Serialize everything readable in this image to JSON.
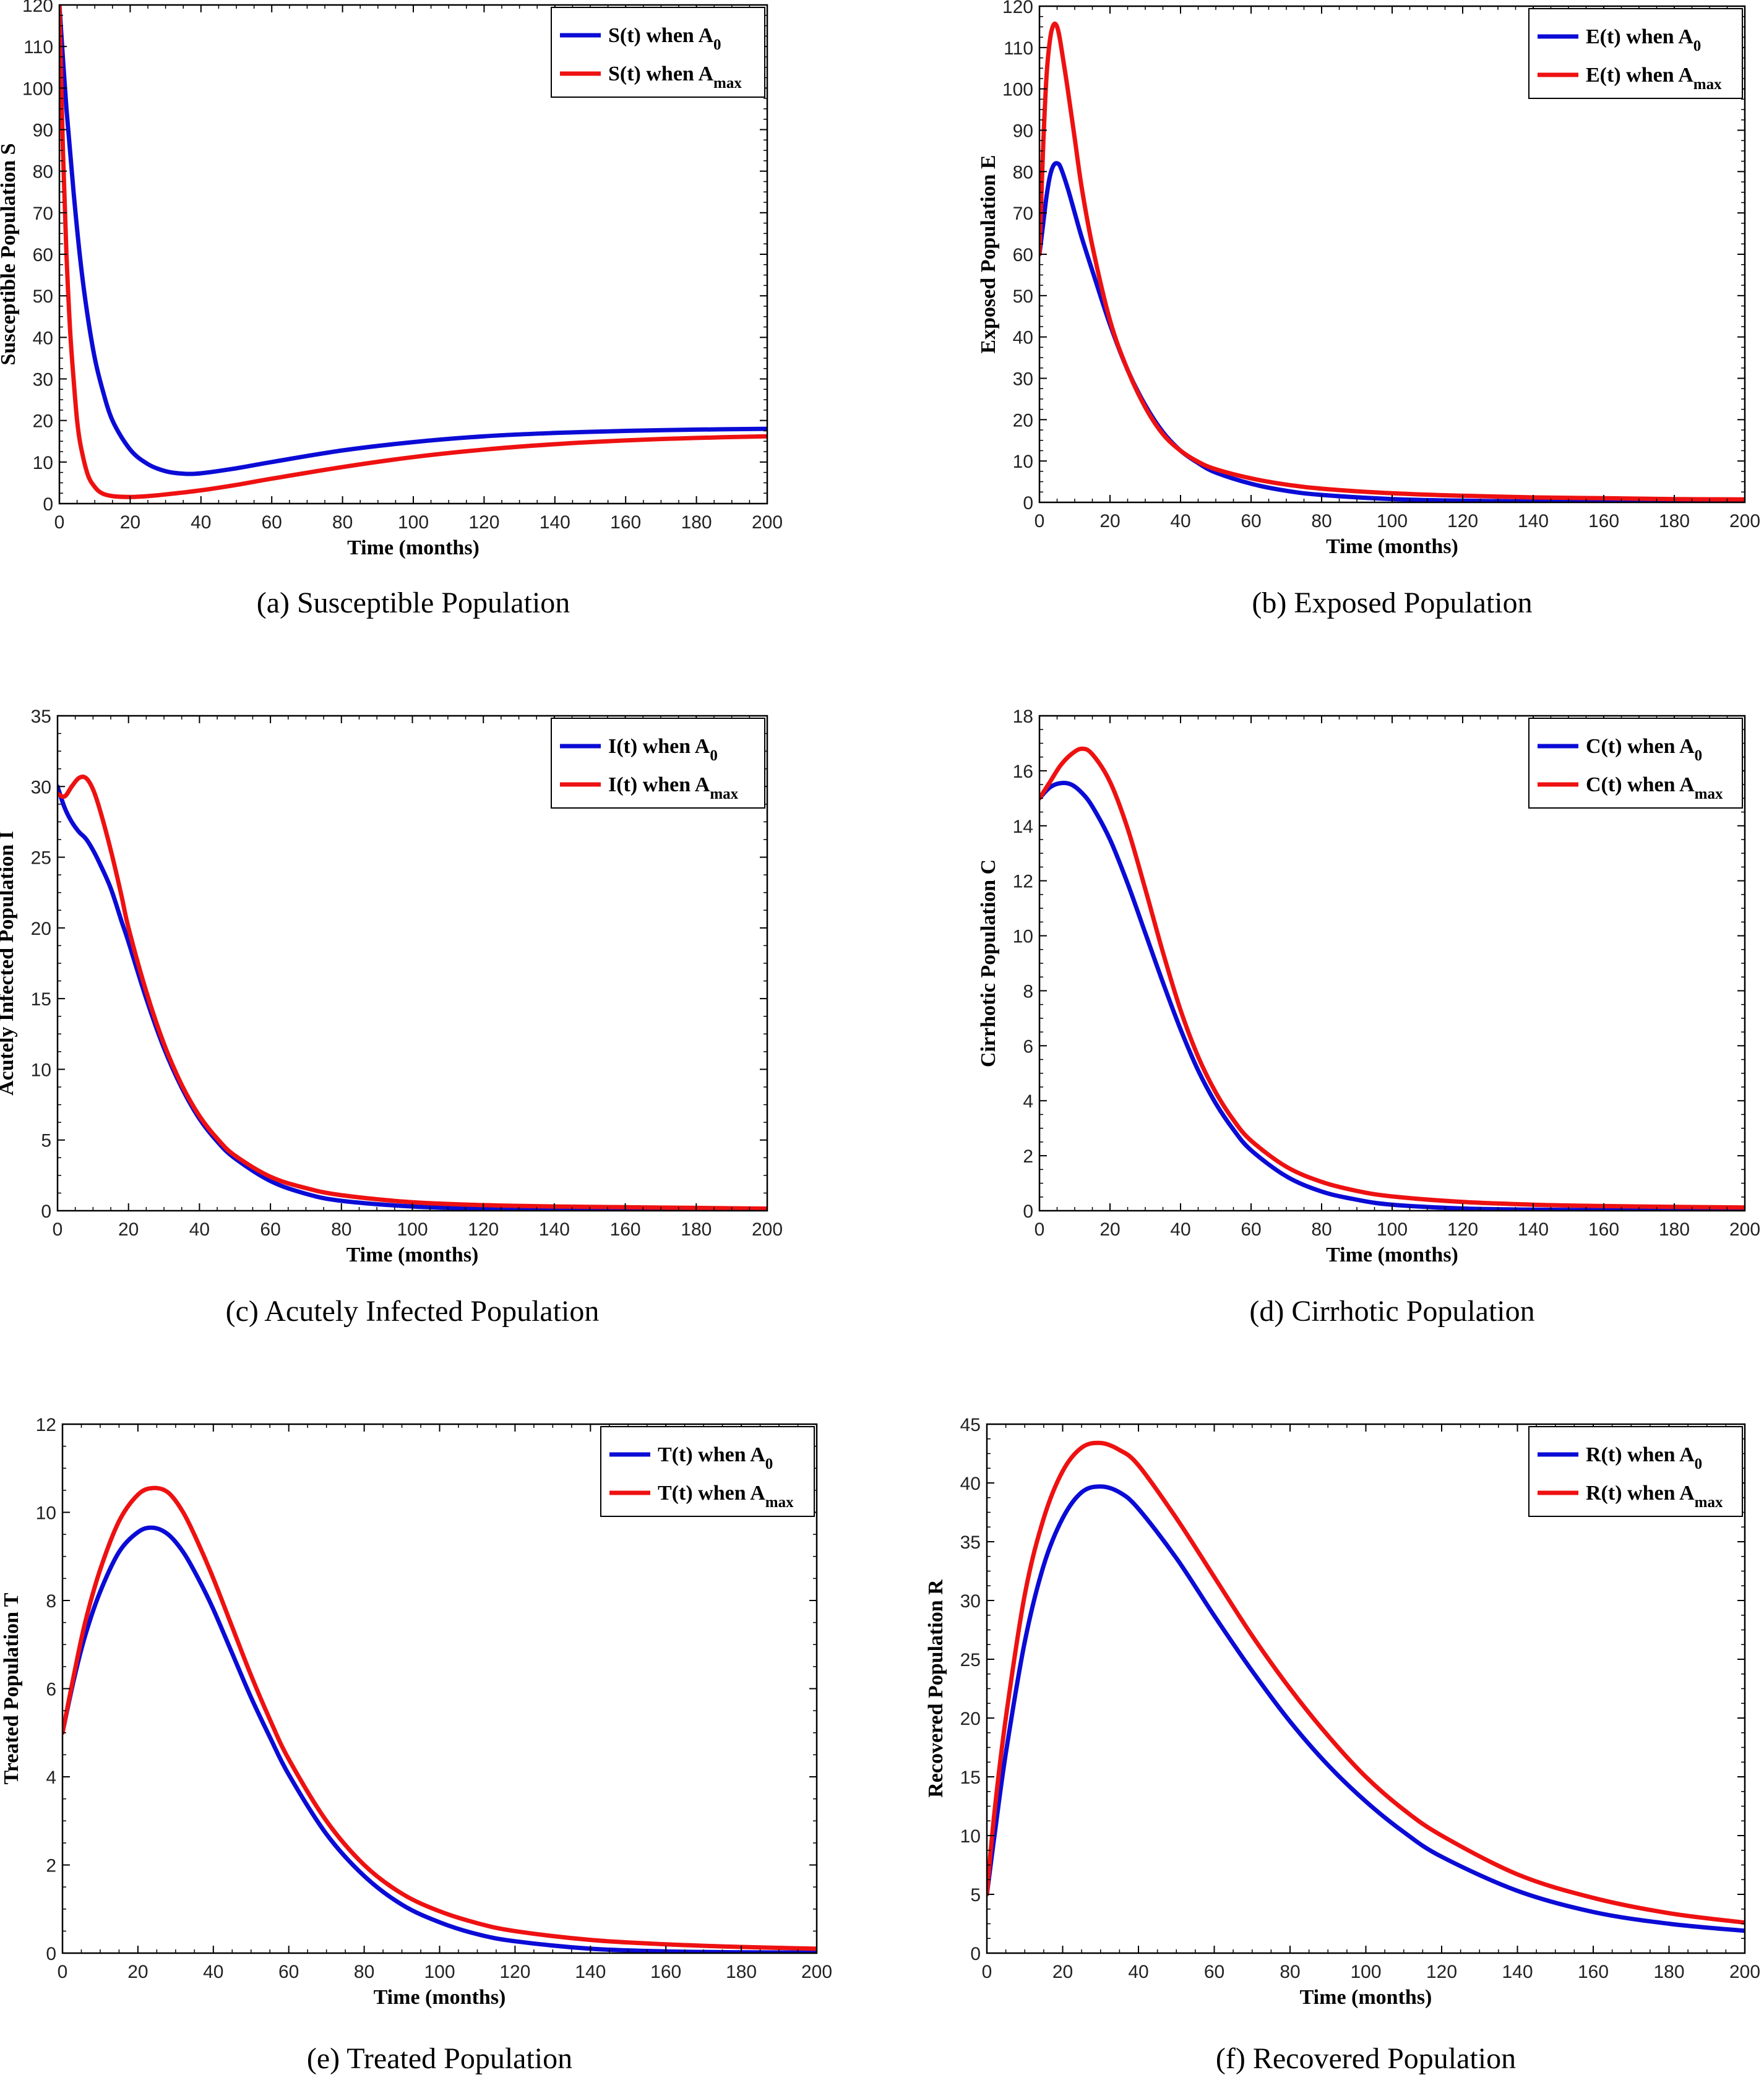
{
  "colors": {
    "a0": "#0b0bd6",
    "amax": "#ee1111",
    "axis": "#000000"
  },
  "chart_data": [
    {
      "type": "line",
      "caption": "(a) Susceptible Population",
      "xlabel": "Time (months)",
      "ylabel": "Susceptible Population S",
      "xlim": [
        0,
        200
      ],
      "ylim": [
        0,
        120
      ],
      "xticks": [
        0,
        20,
        40,
        60,
        80,
        100,
        120,
        140,
        160,
        180,
        200
      ],
      "yticks": [
        0,
        10,
        20,
        30,
        40,
        50,
        60,
        70,
        80,
        90,
        100,
        110,
        120
      ],
      "grid": false,
      "legend_position": "top-right",
      "series": [
        {
          "name": "S(t) when A",
          "subscript": "0",
          "color": "#0b0bd6",
          "x": [
            0,
            2,
            4,
            6,
            8,
            10,
            12,
            15,
            20,
            25,
            30,
            35,
            40,
            50,
            60,
            80,
            100,
            120,
            140,
            160,
            180,
            200
          ],
          "y": [
            120,
            95,
            75,
            58,
            45,
            35,
            28,
            20,
            13,
            9.5,
            7.8,
            7.2,
            7.3,
            8.5,
            10,
            12.8,
            14.8,
            16.2,
            17,
            17.5,
            17.8,
            18
          ]
        },
        {
          "name": "S(t) when A",
          "subscript": "max",
          "color": "#ee1111",
          "x": [
            0,
            1,
            2,
            3,
            4,
            5,
            6,
            8,
            10,
            12,
            15,
            20,
            25,
            30,
            40,
            50,
            60,
            80,
            100,
            120,
            140,
            160,
            180,
            200
          ],
          "y": [
            120,
            85,
            60,
            42,
            30,
            20,
            14,
            7,
            4,
            2.5,
            1.8,
            1.6,
            1.8,
            2.2,
            3.2,
            4.5,
            6,
            8.8,
            11.2,
            13,
            14.3,
            15.2,
            15.8,
            16.2
          ]
        }
      ]
    },
    {
      "type": "line",
      "caption": "(b) Exposed Population",
      "xlabel": "Time (months)",
      "ylabel": "Exposed Population E",
      "xlim": [
        0,
        200
      ],
      "ylim": [
        0,
        120
      ],
      "xticks": [
        0,
        20,
        40,
        60,
        80,
        100,
        120,
        140,
        160,
        180,
        200
      ],
      "yticks": [
        0,
        10,
        20,
        30,
        40,
        50,
        60,
        70,
        80,
        90,
        100,
        110,
        120
      ],
      "grid": false,
      "legend_position": "top-right",
      "series": [
        {
          "name": "E(t) when A",
          "subscript": "0",
          "color": "#0b0bd6",
          "x": [
            0,
            1,
            2,
            3,
            4,
            5,
            6,
            8,
            10,
            12,
            15,
            20,
            25,
            30,
            35,
            40,
            45,
            50,
            60,
            70,
            80,
            100,
            120,
            140,
            160,
            180,
            200
          ],
          "y": [
            60,
            67,
            74,
            79,
            81.5,
            82,
            81,
            76,
            70,
            64,
            56,
            43,
            32,
            23.5,
            17,
            12.5,
            9.5,
            7.2,
            4.5,
            2.8,
            1.8,
            0.8,
            0.4,
            0.2,
            0.1,
            0.1,
            0.1
          ]
        },
        {
          "name": "E(t) when A",
          "subscript": "max",
          "color": "#ee1111",
          "x": [
            0,
            1,
            2,
            3,
            4,
            5,
            6,
            8,
            10,
            12,
            15,
            20,
            25,
            30,
            35,
            40,
            45,
            50,
            60,
            70,
            80,
            100,
            120,
            140,
            160,
            180,
            200
          ],
          "y": [
            60,
            85,
            103,
            112,
            115.5,
            115,
            111,
            100,
            88,
            76,
            62,
            44,
            32,
            23,
            16.5,
            12.5,
            9.8,
            8,
            5.8,
            4.3,
            3.3,
            2.2,
            1.6,
            1.2,
            1,
            0.8,
            0.7
          ]
        }
      ]
    },
    {
      "type": "line",
      "caption": "(c) Acutely Infected Population",
      "xlabel": "Time (months)",
      "ylabel": "Acutely Infected Population I",
      "xlim": [
        0,
        200
      ],
      "ylim": [
        0,
        35
      ],
      "xticks": [
        0,
        20,
        40,
        60,
        80,
        100,
        120,
        140,
        160,
        180,
        200
      ],
      "yticks": [
        0,
        5,
        10,
        15,
        20,
        25,
        30,
        35
      ],
      "grid": false,
      "legend_position": "top-right",
      "series": [
        {
          "name": "I(t) when A",
          "subscript": "0",
          "color": "#0b0bd6",
          "x": [
            0,
            2,
            4,
            6,
            8,
            10,
            12,
            15,
            18,
            20,
            25,
            30,
            35,
            40,
            45,
            50,
            60,
            70,
            80,
            100,
            120,
            140,
            160,
            180,
            200
          ],
          "y": [
            30,
            28.5,
            27.5,
            26.8,
            26.3,
            25.5,
            24.5,
            22.8,
            20.5,
            19,
            15,
            11.5,
            8.7,
            6.5,
            4.9,
            3.7,
            2.1,
            1.2,
            0.7,
            0.3,
            0.15,
            0.1,
            0.08,
            0.05,
            0.05
          ]
        },
        {
          "name": "I(t) when A",
          "subscript": "max",
          "color": "#ee1111",
          "x": [
            0,
            2,
            4,
            6,
            8,
            10,
            12,
            15,
            18,
            20,
            25,
            30,
            35,
            40,
            45,
            50,
            60,
            70,
            80,
            100,
            120,
            140,
            160,
            180,
            200
          ],
          "y": [
            29.5,
            29.3,
            30,
            30.6,
            30.6,
            29.8,
            28.3,
            25.5,
            22.3,
            20,
            15.5,
            11.8,
            8.9,
            6.7,
            5.1,
            3.9,
            2.4,
            1.6,
            1.1,
            0.6,
            0.4,
            0.3,
            0.25,
            0.2,
            0.15
          ]
        }
      ]
    },
    {
      "type": "line",
      "caption": "(d) Cirrhotic Population",
      "xlabel": "Time (months)",
      "ylabel": "Cirrhotic Population C",
      "xlim": [
        0,
        200
      ],
      "ylim": [
        0,
        18
      ],
      "xticks": [
        0,
        20,
        40,
        60,
        80,
        100,
        120,
        140,
        160,
        180,
        200
      ],
      "yticks": [
        0,
        2,
        4,
        6,
        8,
        10,
        12,
        14,
        16,
        18
      ],
      "grid": false,
      "legend_position": "top-right",
      "series": [
        {
          "name": "C(t) when A",
          "subscript": "0",
          "color": "#0b0bd6",
          "x": [
            0,
            3,
            6,
            9,
            12,
            15,
            20,
            25,
            30,
            35,
            40,
            45,
            50,
            55,
            60,
            70,
            80,
            90,
            100,
            120,
            140,
            160,
            180,
            200
          ],
          "y": [
            15,
            15.4,
            15.55,
            15.5,
            15.2,
            14.7,
            13.5,
            11.9,
            10.1,
            8.3,
            6.6,
            5.1,
            3.9,
            2.95,
            2.2,
            1.25,
            0.7,
            0.4,
            0.22,
            0.08,
            0.04,
            0.02,
            0.01,
            0.01
          ]
        },
        {
          "name": "C(t) when A",
          "subscript": "max",
          "color": "#ee1111",
          "x": [
            0,
            3,
            6,
            9,
            12,
            15,
            20,
            25,
            30,
            35,
            40,
            45,
            50,
            55,
            60,
            70,
            80,
            90,
            100,
            120,
            140,
            160,
            180,
            200
          ],
          "y": [
            15,
            15.6,
            16.2,
            16.6,
            16.8,
            16.6,
            15.6,
            13.9,
            11.7,
            9.4,
            7.3,
            5.6,
            4.3,
            3.3,
            2.55,
            1.6,
            1.05,
            0.72,
            0.52,
            0.32,
            0.22,
            0.17,
            0.14,
            0.12
          ]
        }
      ]
    },
    {
      "type": "line",
      "caption": "(e) Treated Population",
      "xlabel": "Time (months)",
      "ylabel": "Treated Population T",
      "xlim": [
        0,
        200
      ],
      "ylim": [
        0,
        12
      ],
      "xticks": [
        0,
        20,
        40,
        60,
        80,
        100,
        120,
        140,
        160,
        180,
        200
      ],
      "yticks": [
        0,
        2,
        4,
        6,
        8,
        10,
        12
      ],
      "grid": false,
      "legend_position": "top-right",
      "series": [
        {
          "name": "T(t) when A",
          "subscript": "0",
          "color": "#0b0bd6",
          "x": [
            0,
            3,
            6,
            10,
            15,
            20,
            24,
            28,
            32,
            36,
            40,
            45,
            50,
            55,
            60,
            70,
            80,
            90,
            100,
            110,
            120,
            140,
            160,
            180,
            200
          ],
          "y": [
            5,
            6.2,
            7.2,
            8.2,
            9.1,
            9.55,
            9.65,
            9.5,
            9.1,
            8.5,
            7.8,
            6.8,
            5.8,
            4.9,
            4.05,
            2.7,
            1.75,
            1.1,
            0.7,
            0.43,
            0.27,
            0.1,
            0.04,
            0.02,
            0.01
          ]
        },
        {
          "name": "T(t) when A",
          "subscript": "max",
          "color": "#ee1111",
          "x": [
            0,
            3,
            6,
            10,
            15,
            20,
            24,
            28,
            32,
            36,
            40,
            45,
            50,
            55,
            60,
            70,
            80,
            90,
            100,
            110,
            120,
            140,
            160,
            180,
            200
          ],
          "y": [
            5,
            6.3,
            7.5,
            8.7,
            9.8,
            10.4,
            10.55,
            10.45,
            10,
            9.3,
            8.5,
            7.4,
            6.3,
            5.3,
            4.4,
            3,
            2,
            1.35,
            0.95,
            0.68,
            0.5,
            0.3,
            0.2,
            0.14,
            0.1
          ]
        }
      ]
    },
    {
      "type": "line",
      "caption": "(f) Recovered Population",
      "xlabel": "Time (months)",
      "ylabel": "Recovered Population R",
      "xlim": [
        0,
        200
      ],
      "ylim": [
        0,
        45
      ],
      "xticks": [
        0,
        20,
        40,
        60,
        80,
        100,
        120,
        140,
        160,
        180,
        200
      ],
      "yticks": [
        0,
        5,
        10,
        15,
        20,
        25,
        30,
        35,
        40,
        45
      ],
      "grid": false,
      "legend_position": "top-right",
      "series": [
        {
          "name": "R(t) when A",
          "subscript": "0",
          "color": "#0b0bd6",
          "x": [
            0,
            2,
            5,
            10,
            15,
            20,
            25,
            30,
            35,
            40,
            50,
            60,
            70,
            80,
            90,
            100,
            110,
            120,
            140,
            160,
            180,
            200
          ],
          "y": [
            5,
            10,
            17,
            26.5,
            33,
            37,
            39.2,
            39.7,
            39.2,
            37.8,
            33.6,
            28.7,
            24,
            19.7,
            16,
            12.9,
            10.3,
            8.2,
            5.3,
            3.5,
            2.5,
            1.9
          ]
        },
        {
          "name": "R(t) when A",
          "subscript": "max",
          "color": "#ee1111",
          "x": [
            0,
            2,
            5,
            10,
            15,
            20,
            25,
            30,
            35,
            40,
            50,
            60,
            70,
            80,
            90,
            100,
            110,
            120,
            140,
            160,
            180,
            200
          ],
          "y": [
            5,
            12,
            20,
            30.5,
            37,
            41,
            43,
            43.4,
            42.8,
            41.5,
            37,
            32,
            27,
            22.5,
            18.5,
            15,
            12.2,
            10,
            6.7,
            4.7,
            3.4,
            2.6
          ]
        }
      ]
    }
  ]
}
